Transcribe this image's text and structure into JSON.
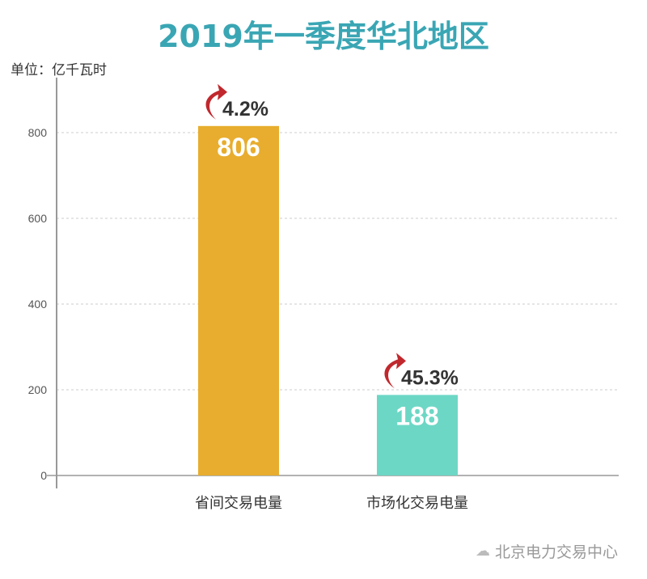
{
  "chart_data": {
    "type": "bar",
    "title": "2019年一季度华北地区",
    "ylabel": "单位：亿千瓦时",
    "xlabel": "",
    "categories": [
      "省间交易电量",
      "市场化交易电量"
    ],
    "values": [
      806,
      188
    ],
    "growth_labels": [
      "4.2%",
      "45.3%"
    ],
    "bar_colors": [
      "#e8ad2e",
      "#6dd7c5"
    ],
    "ylim": [
      0,
      900
    ],
    "yticks": [
      0,
      200,
      400,
      600,
      800
    ],
    "grid": true
  },
  "watermark": "北京电力交易中心",
  "colors": {
    "title": "#3aa6b4",
    "arrow": "#c0282d"
  }
}
